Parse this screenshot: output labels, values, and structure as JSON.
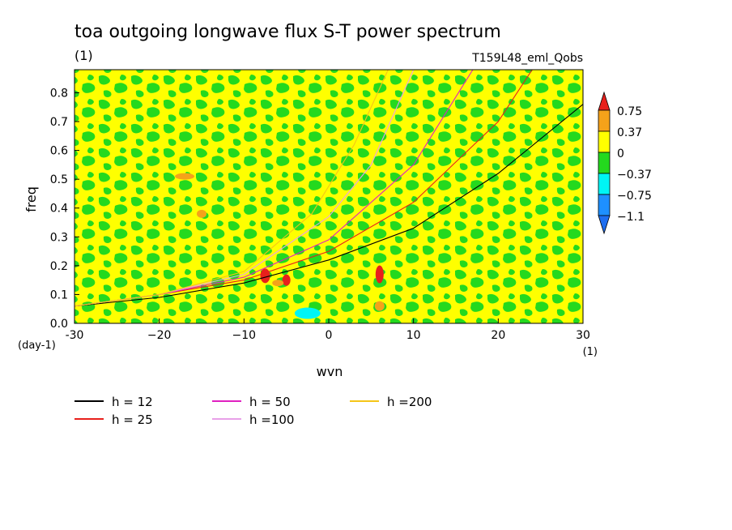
{
  "chart_data": {
    "type": "heatmap",
    "title": "toa outgoing longwave flux S-T power spectrum",
    "title_unit": "(1)",
    "subtitle_right": "T159L48_eml_Qobs",
    "xlabel": "wvn",
    "ylabel": "freq",
    "x_unit": "(1)",
    "y_unit": "(day-1)",
    "xlim": [
      -30,
      30
    ],
    "ylim": [
      0,
      0.88
    ],
    "x_ticks": [
      -30,
      -20,
      -10,
      0,
      10,
      20,
      30
    ],
    "x_tick_labels": [
      "-30",
      "−20",
      "−10",
      "0",
      "10",
      "20",
      "30"
    ],
    "y_ticks": [
      0,
      0.1,
      0.2,
      0.3,
      0.4,
      0.5,
      0.6,
      0.7,
      0.8
    ],
    "y_tick_labels": [
      "0.0",
      "0.1",
      "0.2",
      "0.3",
      "0.4",
      "0.5",
      "0.6",
      "0.7",
      "0.8"
    ],
    "colorbar": {
      "labels": [
        "0.75",
        "0.37",
        "0",
        "−0.37",
        "−0.75",
        "−1.1"
      ],
      "colors": [
        "#e8201c",
        "#f5a21a",
        "#ffff00",
        "#24d91e",
        "#00f5f5",
        "#1e90ff"
      ],
      "upper_arrow_color": "#e8201c",
      "lower_arrow_color": "#1e6ef0"
    },
    "field_colors": {
      "background": "#ffff00",
      "negative": "#24d91e",
      "positive": "#f5a21a",
      "strong_positive": "#e8201c",
      "strong_negative": "#00f5f5"
    },
    "series": [
      {
        "name": "h = 12",
        "color": "#000000",
        "x": [
          -30,
          -20,
          -10,
          0,
          10,
          20,
          30
        ],
        "y": [
          0.06,
          0.09,
          0.14,
          0.22,
          0.33,
          0.52,
          0.76
        ]
      },
      {
        "name": "h = 25",
        "color": "#e8201c",
        "x": [
          -30,
          -20,
          -10,
          0,
          10,
          20,
          24
        ],
        "y": [
          0.06,
          0.1,
          0.15,
          0.25,
          0.42,
          0.7,
          0.88
        ]
      },
      {
        "name": "h = 50",
        "color": "#e020c0",
        "x": [
          -30,
          -20,
          -10,
          0,
          10,
          17
        ],
        "y": [
          0.06,
          0.1,
          0.16,
          0.29,
          0.55,
          0.88
        ]
      },
      {
        "name": "h =100",
        "color": "#e8a0e8",
        "x": [
          -30,
          -20,
          -10,
          0,
          5,
          10
        ],
        "y": [
          0.06,
          0.1,
          0.17,
          0.37,
          0.55,
          0.88
        ]
      },
      {
        "name": "h =200",
        "color": "#f5c518",
        "x": [
          -30,
          -20,
          -10,
          -2,
          3,
          7
        ],
        "y": [
          0.06,
          0.1,
          0.18,
          0.38,
          0.62,
          0.88
        ]
      }
    ]
  },
  "legend": {
    "items": [
      {
        "label": "h = 12",
        "color": "#000000"
      },
      {
        "label": "h = 25",
        "color": "#e8201c"
      },
      {
        "label": "h = 50",
        "color": "#e020c0"
      },
      {
        "label": "h =100",
        "color": "#e8a0e8"
      },
      {
        "label": "h =200",
        "color": "#f5c518"
      }
    ]
  }
}
